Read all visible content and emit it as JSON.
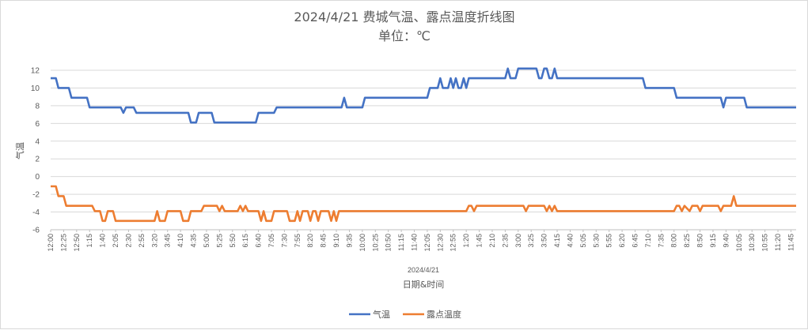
{
  "chart_data": {
    "type": "line",
    "title": "2024/4/21 费城气温、露点温度折线图",
    "subtitle": "单位：℃",
    "ylabel": "气温",
    "xlabel": "日期&时间",
    "date_label": "2024/4/21",
    "ylim": [
      -6,
      12
    ],
    "yticks": [
      -6,
      -4,
      -2,
      0,
      2,
      4,
      6,
      8,
      10,
      12
    ],
    "grid": "horizontal",
    "legend_position": "bottom",
    "x_tick_labels": [
      "12:00",
      "12:25",
      "12:50",
      "1:15",
      "1:40",
      "2:05",
      "2:30",
      "2:55",
      "3:20",
      "3:45",
      "4:10",
      "4:35",
      "5:00",
      "5:25",
      "5:50",
      "6:15",
      "6:40",
      "7:05",
      "7:30",
      "7:55",
      "8:20",
      "8:45",
      "9:10",
      "9:35",
      "10:00",
      "10:25",
      "10:50",
      "11:15",
      "11:40",
      "12:05",
      "12:30",
      "12:55",
      "1:20",
      "1:45",
      "2:10",
      "2:35",
      "3:00",
      "3:25",
      "3:50",
      "4:15",
      "4:40",
      "5:05",
      "5:30",
      "5:55",
      "6:20",
      "6:45",
      "7:10",
      "7:35",
      "8:00",
      "8:25",
      "8:50",
      "9:15",
      "9:40",
      "10:05",
      "10:30",
      "10:55",
      "11:20",
      "11:45"
    ],
    "x_minutes_start": "12:00",
    "series": [
      {
        "name": "气温",
        "color": "#4472c4",
        "points": [
          [
            0,
            11.1
          ],
          [
            10,
            11.1
          ],
          [
            15,
            10
          ],
          [
            35,
            10
          ],
          [
            40,
            8.9
          ],
          [
            70,
            8.9
          ],
          [
            75,
            7.8
          ],
          [
            135,
            7.8
          ],
          [
            140,
            7.2
          ],
          [
            145,
            7.8
          ],
          [
            160,
            7.8
          ],
          [
            165,
            7.2
          ],
          [
            265,
            7.2
          ],
          [
            270,
            6.1
          ],
          [
            280,
            6.1
          ],
          [
            285,
            7.2
          ],
          [
            310,
            7.2
          ],
          [
            315,
            6.1
          ],
          [
            395,
            6.1
          ],
          [
            400,
            7.2
          ],
          [
            430,
            7.2
          ],
          [
            435,
            7.8
          ],
          [
            560,
            7.8
          ],
          [
            565,
            8.9
          ],
          [
            570,
            7.8
          ],
          [
            600,
            7.8
          ],
          [
            605,
            8.9
          ],
          [
            725,
            8.9
          ],
          [
            730,
            10
          ],
          [
            745,
            10
          ],
          [
            750,
            11.1
          ],
          [
            755,
            10
          ],
          [
            765,
            10
          ],
          [
            770,
            11.1
          ],
          [
            775,
            10
          ],
          [
            780,
            11.1
          ],
          [
            785,
            10
          ],
          [
            790,
            10
          ],
          [
            795,
            11.1
          ],
          [
            800,
            10
          ],
          [
            805,
            11.1
          ],
          [
            875,
            11.1
          ],
          [
            880,
            12.2
          ],
          [
            885,
            11.1
          ],
          [
            895,
            11.1
          ],
          [
            900,
            12.2
          ],
          [
            935,
            12.2
          ],
          [
            940,
            11.1
          ],
          [
            945,
            11.1
          ],
          [
            950,
            12.2
          ],
          [
            955,
            12.2
          ],
          [
            960,
            11.1
          ],
          [
            965,
            11.1
          ],
          [
            970,
            12.2
          ],
          [
            975,
            11.1
          ],
          [
            1140,
            11.1
          ],
          [
            1145,
            10
          ],
          [
            1200,
            10
          ],
          [
            1205,
            8.9
          ],
          [
            1290,
            8.9
          ],
          [
            1295,
            7.8
          ],
          [
            1300,
            8.9
          ],
          [
            1335,
            8.9
          ],
          [
            1340,
            7.8
          ],
          [
            1435,
            7.8
          ]
        ]
      },
      {
        "name": "露点温度",
        "color": "#ed7d31",
        "points": [
          [
            0,
            -1.1
          ],
          [
            10,
            -1.1
          ],
          [
            15,
            -2.2
          ],
          [
            25,
            -2.2
          ],
          [
            30,
            -3.3
          ],
          [
            80,
            -3.3
          ],
          [
            85,
            -3.9
          ],
          [
            95,
            -3.9
          ],
          [
            100,
            -5
          ],
          [
            105,
            -5
          ],
          [
            110,
            -3.9
          ],
          [
            120,
            -3.9
          ],
          [
            125,
            -5
          ],
          [
            200,
            -5
          ],
          [
            205,
            -3.9
          ],
          [
            210,
            -5
          ],
          [
            220,
            -5
          ],
          [
            225,
            -3.9
          ],
          [
            250,
            -3.9
          ],
          [
            255,
            -5
          ],
          [
            265,
            -5
          ],
          [
            270,
            -3.9
          ],
          [
            290,
            -3.9
          ],
          [
            295,
            -3.3
          ],
          [
            320,
            -3.3
          ],
          [
            325,
            -3.9
          ],
          [
            330,
            -3.3
          ],
          [
            335,
            -3.9
          ],
          [
            360,
            -3.9
          ],
          [
            365,
            -3.3
          ],
          [
            370,
            -3.9
          ],
          [
            375,
            -3.3
          ],
          [
            380,
            -3.9
          ],
          [
            400,
            -3.9
          ],
          [
            405,
            -5
          ],
          [
            410,
            -3.9
          ],
          [
            415,
            -5
          ],
          [
            425,
            -5
          ],
          [
            430,
            -3.9
          ],
          [
            455,
            -3.9
          ],
          [
            460,
            -5
          ],
          [
            470,
            -5
          ],
          [
            475,
            -3.9
          ],
          [
            480,
            -5
          ],
          [
            485,
            -3.9
          ],
          [
            495,
            -3.9
          ],
          [
            500,
            -5
          ],
          [
            505,
            -3.9
          ],
          [
            510,
            -3.9
          ],
          [
            515,
            -5
          ],
          [
            520,
            -3.9
          ],
          [
            535,
            -3.9
          ],
          [
            540,
            -5
          ],
          [
            545,
            -3.9
          ],
          [
            550,
            -5
          ],
          [
            555,
            -3.9
          ],
          [
            800,
            -3.9
          ],
          [
            805,
            -3.3
          ],
          [
            810,
            -3.3
          ],
          [
            815,
            -3.9
          ],
          [
            820,
            -3.3
          ],
          [
            910,
            -3.3
          ],
          [
            915,
            -3.9
          ],
          [
            920,
            -3.3
          ],
          [
            950,
            -3.3
          ],
          [
            955,
            -3.9
          ],
          [
            960,
            -3.3
          ],
          [
            965,
            -3.9
          ],
          [
            970,
            -3.3
          ],
          [
            975,
            -3.9
          ],
          [
            1200,
            -3.9
          ],
          [
            1205,
            -3.3
          ],
          [
            1210,
            -3.3
          ],
          [
            1215,
            -3.9
          ],
          [
            1220,
            -3.3
          ],
          [
            1230,
            -3.9
          ],
          [
            1235,
            -3.3
          ],
          [
            1245,
            -3.3
          ],
          [
            1250,
            -3.9
          ],
          [
            1255,
            -3.3
          ],
          [
            1285,
            -3.3
          ],
          [
            1290,
            -3.9
          ],
          [
            1295,
            -3.3
          ],
          [
            1310,
            -3.3
          ],
          [
            1315,
            -2.2
          ],
          [
            1320,
            -3.3
          ],
          [
            1435,
            -3.3
          ]
        ]
      }
    ]
  }
}
